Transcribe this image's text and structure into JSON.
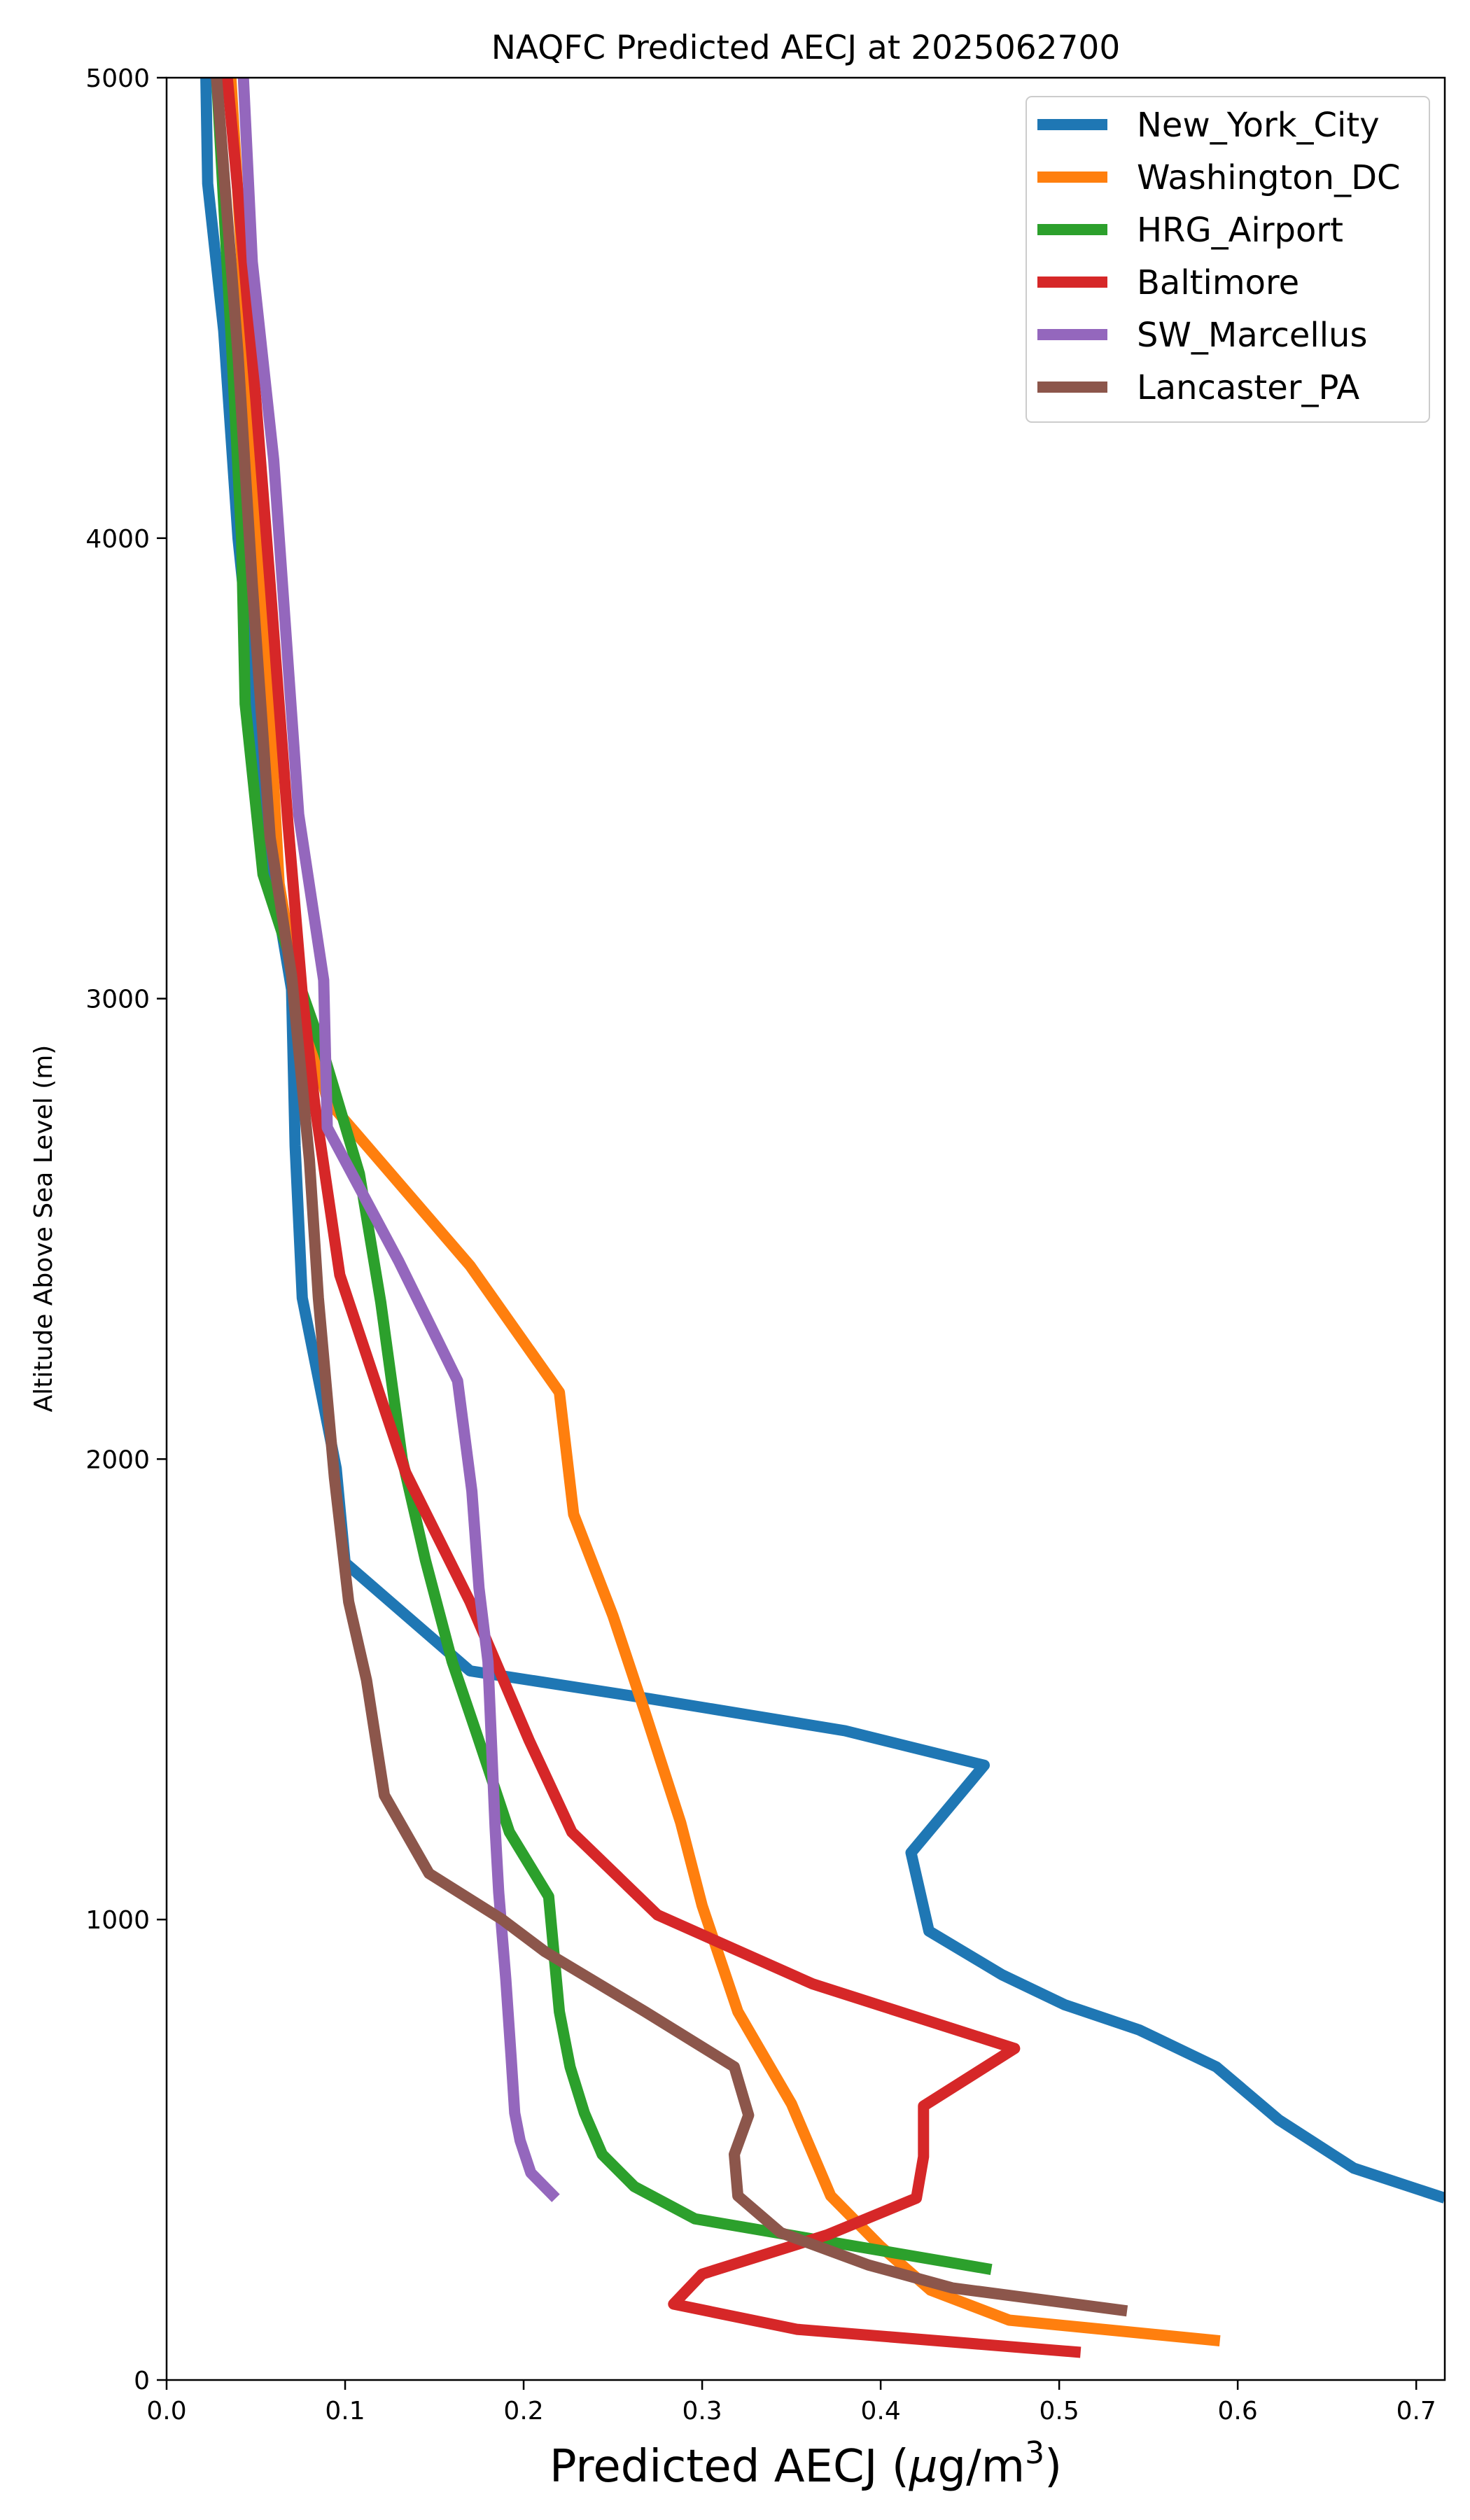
{
  "chart_data": {
    "type": "line",
    "title": "NAQFC Predicted AECJ at 2025062700",
    "xlabel": "Predicted AECJ (",
    "xlabel_mu": "μ",
    "xlabel_unit": "g/m",
    "xlabel_sup": "3",
    "xlabel_end": ")",
    "ylabel": "Altitude Above Sea Level (m)",
    "xlim": [
      0.0,
      0.716
    ],
    "ylim": [
      0,
      5000
    ],
    "xticks": [
      0.0,
      0.1,
      0.2,
      0.3,
      0.4,
      0.5,
      0.6,
      0.7
    ],
    "xtick_labels": [
      "0.0",
      "0.1",
      "0.2",
      "0.3",
      "0.4",
      "0.5",
      "0.6",
      "0.7"
    ],
    "yticks": [
      0,
      1000,
      2000,
      3000,
      4000,
      5000
    ],
    "ytick_labels": [
      "0",
      "1000",
      "2000",
      "3000",
      "4000",
      "5000"
    ],
    "grid": false,
    "legend_position": "top-right",
    "series": [
      {
        "name": "New_York_City",
        "color": "#1f77b4",
        "points": [
          [
            0.716,
            395
          ],
          [
            0.665,
            460
          ],
          [
            0.623,
            565
          ],
          [
            0.588,
            680
          ],
          [
            0.545,
            760
          ],
          [
            0.503,
            815
          ],
          [
            0.468,
            880
          ],
          [
            0.427,
            975
          ],
          [
            0.417,
            1145
          ],
          [
            0.458,
            1335
          ],
          [
            0.38,
            1410
          ],
          [
            0.27,
            1480
          ],
          [
            0.17,
            1540
          ],
          [
            0.1,
            1775
          ],
          [
            0.095,
            1980
          ],
          [
            0.085,
            2175
          ],
          [
            0.076,
            2350
          ],
          [
            0.072,
            2680
          ],
          [
            0.07,
            3020
          ],
          [
            0.06,
            3250
          ],
          [
            0.04,
            4000
          ],
          [
            0.032,
            4450
          ],
          [
            0.023,
            4770
          ],
          [
            0.022,
            5000
          ]
        ]
      },
      {
        "name": "Washington_DC",
        "color": "#ff7f0e",
        "points": [
          [
            0.59,
            85
          ],
          [
            0.472,
            130
          ],
          [
            0.428,
            195
          ],
          [
            0.4,
            290
          ],
          [
            0.372,
            400
          ],
          [
            0.35,
            600
          ],
          [
            0.32,
            800
          ],
          [
            0.3,
            1030
          ],
          [
            0.288,
            1210
          ],
          [
            0.268,
            1450
          ],
          [
            0.25,
            1660
          ],
          [
            0.228,
            1880
          ],
          [
            0.22,
            2145
          ],
          [
            0.17,
            2420
          ],
          [
            0.09,
            2780
          ],
          [
            0.07,
            3090
          ],
          [
            0.063,
            3250
          ],
          [
            0.06,
            3470
          ],
          [
            0.052,
            4000
          ],
          [
            0.045,
            4420
          ],
          [
            0.036,
            5000
          ]
        ]
      },
      {
        "name": "HRG_Airport",
        "color": "#2ca02c",
        "points": [
          [
            0.462,
            240
          ],
          [
            0.296,
            350
          ],
          [
            0.262,
            420
          ],
          [
            0.244,
            490
          ],
          [
            0.234,
            580
          ],
          [
            0.226,
            680
          ],
          [
            0.22,
            800
          ],
          [
            0.214,
            1050
          ],
          [
            0.192,
            1190
          ],
          [
            0.174,
            1400
          ],
          [
            0.16,
            1560
          ],
          [
            0.145,
            1780
          ],
          [
            0.132,
            2000
          ],
          [
            0.12,
            2340
          ],
          [
            0.108,
            2620
          ],
          [
            0.088,
            2880
          ],
          [
            0.07,
            3080
          ],
          [
            0.054,
            3270
          ],
          [
            0.044,
            3640
          ],
          [
            0.042,
            4000
          ],
          [
            0.036,
            4450
          ],
          [
            0.028,
            5000
          ]
        ]
      },
      {
        "name": "Baltimore",
        "color": "#d62728",
        "points": [
          [
            0.512,
            60
          ],
          [
            0.353,
            110
          ],
          [
            0.284,
            165
          ],
          [
            0.3,
            230
          ],
          [
            0.37,
            315
          ],
          [
            0.42,
            395
          ],
          [
            0.424,
            485
          ],
          [
            0.424,
            595
          ],
          [
            0.475,
            720
          ],
          [
            0.362,
            860
          ],
          [
            0.275,
            1010
          ],
          [
            0.227,
            1190
          ],
          [
            0.203,
            1390
          ],
          [
            0.17,
            1690
          ],
          [
            0.134,
            1970
          ],
          [
            0.097,
            2400
          ],
          [
            0.083,
            2770
          ],
          [
            0.076,
            3010
          ],
          [
            0.068,
            3380
          ],
          [
            0.058,
            3900
          ],
          [
            0.05,
            4300
          ],
          [
            0.04,
            4750
          ],
          [
            0.034,
            5000
          ]
        ]
      },
      {
        "name": "SW_Marcellus",
        "color": "#9467bd",
        "points": [
          [
            0.218,
            395
          ],
          [
            0.204,
            450
          ],
          [
            0.198,
            520
          ],
          [
            0.195,
            580
          ],
          [
            0.193,
            700
          ],
          [
            0.19,
            870
          ],
          [
            0.186,
            1060
          ],
          [
            0.184,
            1200
          ],
          [
            0.18,
            1560
          ],
          [
            0.175,
            1720
          ],
          [
            0.171,
            1930
          ],
          [
            0.163,
            2170
          ],
          [
            0.13,
            2430
          ],
          [
            0.09,
            2720
          ],
          [
            0.088,
            3040
          ],
          [
            0.074,
            3400
          ],
          [
            0.06,
            4170
          ],
          [
            0.048,
            4600
          ],
          [
            0.043,
            5000
          ]
        ]
      },
      {
        "name": "Lancaster_PA",
        "color": "#8c564b",
        "points": [
          [
            0.538,
            150
          ],
          [
            0.44,
            200
          ],
          [
            0.393,
            250
          ],
          [
            0.344,
            320
          ],
          [
            0.32,
            400
          ],
          [
            0.318,
            490
          ],
          [
            0.326,
            575
          ],
          [
            0.318,
            680
          ],
          [
            0.268,
            800
          ],
          [
            0.212,
            930
          ],
          [
            0.188,
            1000
          ],
          [
            0.147,
            1100
          ],
          [
            0.122,
            1270
          ],
          [
            0.112,
            1520
          ],
          [
            0.102,
            1690
          ],
          [
            0.094,
            1960
          ],
          [
            0.085,
            2350
          ],
          [
            0.08,
            2650
          ],
          [
            0.07,
            3050
          ],
          [
            0.058,
            3350
          ],
          [
            0.048,
            3900
          ],
          [
            0.04,
            4400
          ],
          [
            0.028,
            5000
          ]
        ]
      }
    ]
  }
}
